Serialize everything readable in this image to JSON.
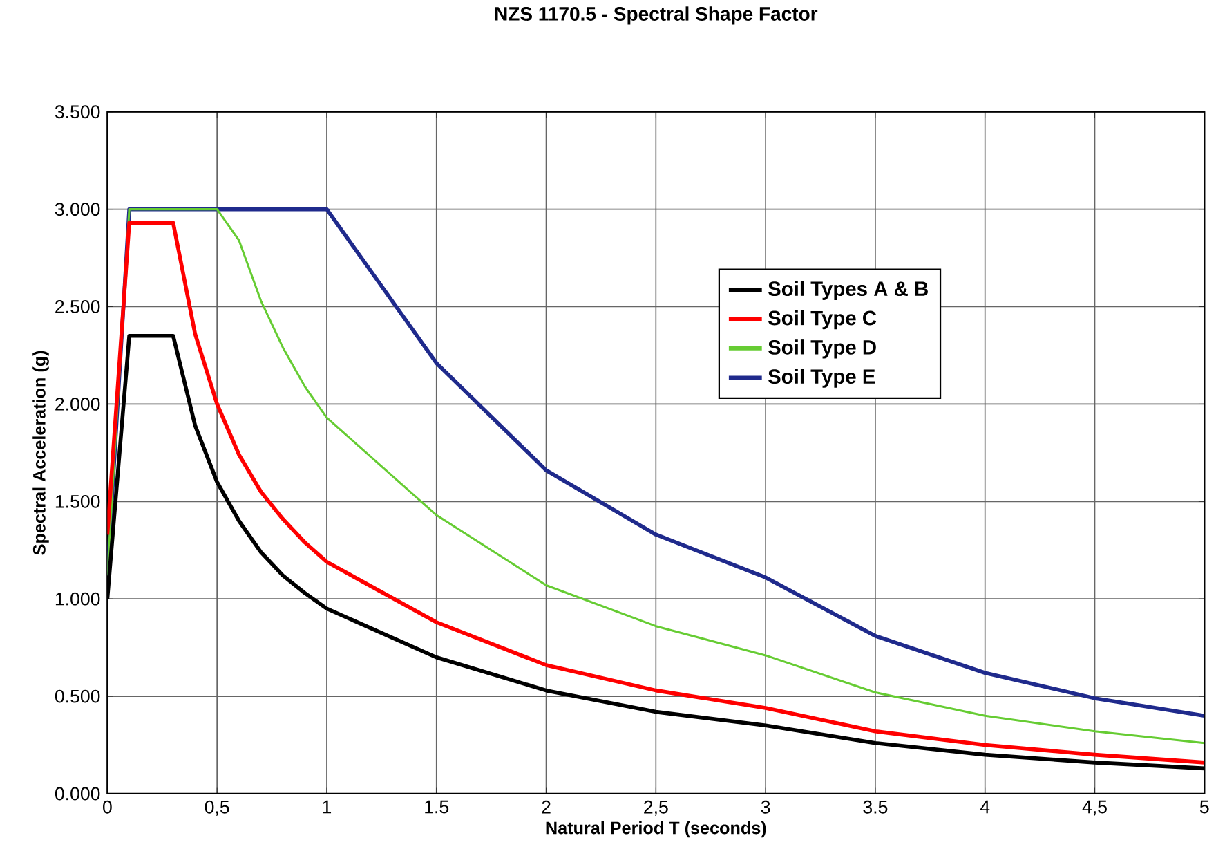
{
  "chart_data": {
    "type": "line",
    "title": "NZS 1170.5 - Spectral Shape Factor",
    "xlabel": "Natural Period T (seconds)",
    "ylabel": "Spectral Acceleration (g)",
    "x": [
      0,
      0.1,
      0.2,
      0.3,
      0.4,
      0.5,
      0.6,
      0.7,
      0.8,
      0.9,
      1.0,
      1.5,
      2.0,
      2.5,
      3.0,
      3.5,
      4.0,
      4.5,
      5.0
    ],
    "series": [
      {
        "name": "Soil Types A & B",
        "color": "#000000",
        "values": [
          1.0,
          2.35,
          2.35,
          2.35,
          1.89,
          1.6,
          1.4,
          1.24,
          1.12,
          1.03,
          0.95,
          0.7,
          0.53,
          0.42,
          0.35,
          0.26,
          0.2,
          0.16,
          0.13
        ]
      },
      {
        "name": "Soil Type C",
        "color": "#ff0000",
        "values": [
          1.33,
          2.93,
          2.93,
          2.93,
          2.36,
          2.0,
          1.74,
          1.55,
          1.41,
          1.29,
          1.19,
          0.88,
          0.66,
          0.53,
          0.44,
          0.32,
          0.25,
          0.2,
          0.16
        ]
      },
      {
        "name": "Soil Type D",
        "color": "#66cc33",
        "values": [
          1.12,
          3.0,
          3.0,
          3.0,
          3.0,
          3.0,
          2.84,
          2.53,
          2.29,
          2.09,
          1.93,
          1.43,
          1.07,
          0.86,
          0.71,
          0.52,
          0.4,
          0.32,
          0.26
        ]
      },
      {
        "name": "Soil Type E",
        "color": "#1f2a8c",
        "values": [
          1.12,
          3.0,
          3.0,
          3.0,
          3.0,
          3.0,
          3.0,
          3.0,
          3.0,
          3.0,
          3.0,
          2.21,
          1.66,
          1.33,
          1.11,
          0.81,
          0.62,
          0.49,
          0.4
        ]
      }
    ],
    "xlim": [
      0,
      5
    ],
    "ylim": [
      0,
      3.5
    ],
    "xticks": [
      0,
      {
        "value": 0.5,
        "label": "0,5"
      },
      1,
      {
        "value": 1.5,
        "label": "1.5"
      },
      2,
      {
        "value": 2.5,
        "label": "2,5"
      },
      3,
      {
        "value": 3.5,
        "label": "3.5"
      },
      4,
      {
        "value": 4.5,
        "label": "4,5"
      },
      5
    ],
    "yticks": [
      {
        "value": 0,
        "label": "0.000"
      },
      {
        "value": 0.5,
        "label": "0.500"
      },
      {
        "value": 1,
        "label": "1.000"
      },
      {
        "value": 1.5,
        "label": "1.500"
      },
      {
        "value": 2,
        "label": "2.000"
      },
      {
        "value": 2.5,
        "label": "2.500"
      },
      {
        "value": 3,
        "label": "3.000"
      },
      {
        "value": 3.5,
        "label": "3.500"
      }
    ],
    "grid": true,
    "legend": "top right",
    "marker": "none",
    "line_style": "solid"
  }
}
